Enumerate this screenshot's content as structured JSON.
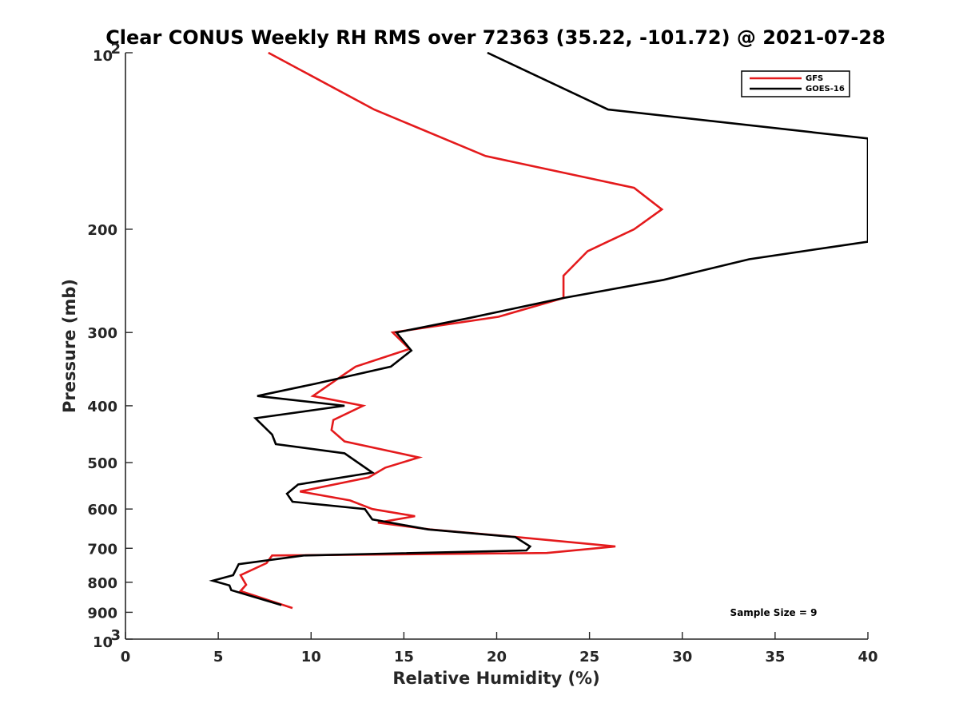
{
  "chart_data": {
    "type": "line",
    "title": "Clear CONUS Weekly RH RMS over 72363 (35.22, -101.72) @ 2021-07-28",
    "xlabel": "Relative Humidity (%)",
    "ylabel": "Pressure (mb)",
    "xlim": [
      0,
      40
    ],
    "ylim": [
      100,
      1000
    ],
    "yscale": "log",
    "y_reversed": true,
    "x_ticks": [
      0,
      5,
      10,
      15,
      20,
      25,
      30,
      35,
      40
    ],
    "x_tick_labels": [
      "0",
      "5",
      "10",
      "15",
      "20",
      "25",
      "30",
      "35",
      "40"
    ],
    "y_ticks": [
      100,
      200,
      300,
      400,
      500,
      600,
      700,
      800,
      900,
      1000
    ],
    "y_tick_labels": [
      {
        "base": "10",
        "exp": "2"
      },
      {
        "base": "200",
        "exp": ""
      },
      {
        "base": "300",
        "exp": ""
      },
      {
        "base": "400",
        "exp": ""
      },
      {
        "base": "500",
        "exp": ""
      },
      {
        "base": "600",
        "exp": ""
      },
      {
        "base": "700",
        "exp": ""
      },
      {
        "base": "800",
        "exp": ""
      },
      {
        "base": "900",
        "exp": ""
      },
      {
        "base": "10",
        "exp": "3"
      }
    ],
    "grid": false,
    "legend_position": "top-right",
    "annotation": "Sample Size = 9",
    "series": [
      {
        "name": "GFS",
        "color": "#e41a1c",
        "x": [
          7.7,
          13.4,
          19.4,
          27.4,
          28.9,
          27.4,
          24.9,
          23.6,
          23.6,
          20.1,
          14.4,
          15.3,
          12.4,
          11.7,
          10.1,
          12.8,
          11.2,
          11.1,
          11.8,
          15.8,
          14.0,
          13.1,
          9.4,
          12.1,
          13.3,
          15.6,
          13.6,
          16.4,
          21.1,
          26.4,
          22.7,
          7.9,
          7.6,
          6.2,
          6.5,
          6.2,
          9.0
        ],
        "y": [
          100,
          125,
          150,
          170,
          185,
          200,
          218,
          240,
          262,
          282,
          300,
          320,
          343,
          355,
          385,
          400,
          423,
          440,
          460,
          490,
          510,
          530,
          560,
          580,
          600,
          617,
          633,
          650,
          670,
          695,
          713,
          720,
          742,
          778,
          808,
          828,
          885
        ]
      },
      {
        "name": "GOES-16",
        "color": "#000000",
        "x": [
          19.5,
          26.0,
          40.0,
          40.0,
          33.6,
          29.0,
          23.6,
          18.4,
          14.6,
          15.4,
          14.3,
          10.2,
          7.1,
          11.8,
          7.0,
          7.9,
          8.1,
          11.8,
          13.3,
          9.3,
          8.7,
          9.0,
          12.9,
          13.3,
          16.3,
          21.0,
          21.8,
          21.6,
          9.6,
          6.1,
          5.8,
          4.7,
          5.6,
          5.7,
          8.4
        ],
        "y": [
          100,
          125,
          140,
          210,
          225,
          244,
          262,
          284,
          300,
          322,
          343,
          367,
          385,
          400,
          420,
          448,
          465,
          482,
          520,
          545,
          565,
          583,
          600,
          625,
          650,
          670,
          695,
          706,
          720,
          745,
          778,
          795,
          810,
          825,
          875
        ]
      }
    ]
  }
}
